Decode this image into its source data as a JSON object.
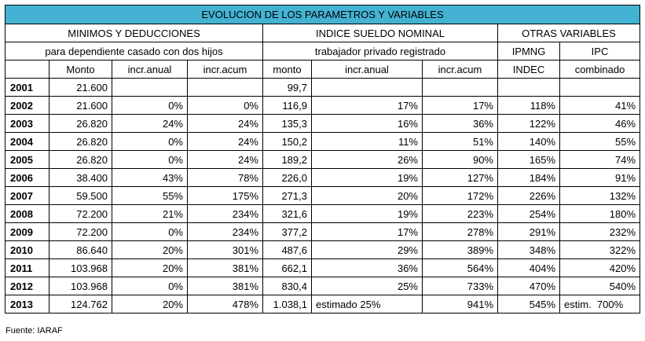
{
  "title": "EVOLUCION DE LOS PARAMETROS Y VARIABLES",
  "groups": {
    "minimos": "MINIMOS Y DEDUCCIONES",
    "indice": "INDICE SUELDO NOMINAL",
    "otras": "OTRAS VARIABLES"
  },
  "subgroups": {
    "minimos": "para dependiente casado con dos hijos",
    "indice": "trabajador privado registrado",
    "ipmng": "IPMNG",
    "ipc": "IPC"
  },
  "columns": [
    "Monto",
    "incr.anual",
    "incr.acum",
    "monto",
    "incr.anual",
    "incr.acum",
    "INDEC",
    "combinado"
  ],
  "rows": [
    {
      "year": "2001",
      "monto": "21.600",
      "ia": "",
      "iac": "",
      "sueldo": "99,7",
      "sia": "",
      "siac": "",
      "ipmng": "",
      "ipc": ""
    },
    {
      "year": "2002",
      "monto": "21.600",
      "ia": "0%",
      "iac": "0%",
      "sueldo": "116,9",
      "sia": "17%",
      "siac": "17%",
      "ipmng": "118%",
      "ipc": "41%"
    },
    {
      "year": "2003",
      "monto": "26.820",
      "ia": "24%",
      "iac": "24%",
      "sueldo": "135,3",
      "sia": "16%",
      "siac": "36%",
      "ipmng": "122%",
      "ipc": "46%"
    },
    {
      "year": "2004",
      "monto": "26.820",
      "ia": "0%",
      "iac": "24%",
      "sueldo": "150,2",
      "sia": "11%",
      "siac": "51%",
      "ipmng": "140%",
      "ipc": "55%"
    },
    {
      "year": "2005",
      "monto": "26.820",
      "ia": "0%",
      "iac": "24%",
      "sueldo": "189,2",
      "sia": "26%",
      "siac": "90%",
      "ipmng": "165%",
      "ipc": "74%"
    },
    {
      "year": "2006",
      "monto": "38.400",
      "ia": "43%",
      "iac": "78%",
      "sueldo": "226,0",
      "sia": "19%",
      "siac": "127%",
      "ipmng": "184%",
      "ipc": "91%"
    },
    {
      "year": "2007",
      "monto": "59.500",
      "ia": "55%",
      "iac": "175%",
      "sueldo": "271,3",
      "sia": "20%",
      "siac": "172%",
      "ipmng": "226%",
      "ipc": "132%"
    },
    {
      "year": "2008",
      "monto": "72.200",
      "ia": "21%",
      "iac": "234%",
      "sueldo": "321,6",
      "sia": "19%",
      "siac": "223%",
      "ipmng": "254%",
      "ipc": "180%"
    },
    {
      "year": "2009",
      "monto": "72.200",
      "ia": "0%",
      "iac": "234%",
      "sueldo": "377,2",
      "sia": "17%",
      "siac": "278%",
      "ipmng": "291%",
      "ipc": "232%"
    },
    {
      "year": "2010",
      "monto": "86.640",
      "ia": "20%",
      "iac": "301%",
      "sueldo": "487,6",
      "sia": "29%",
      "siac": "389%",
      "ipmng": "348%",
      "ipc": "322%"
    },
    {
      "year": "2011",
      "monto": "103.968",
      "ia": "20%",
      "iac": "381%",
      "sueldo": "662,1",
      "sia": "36%",
      "siac": "564%",
      "ipmng": "404%",
      "ipc": "420%"
    },
    {
      "year": "2012",
      "monto": "103.968",
      "ia": "0%",
      "iac": "381%",
      "sueldo": "830,4",
      "sia": "25%",
      "siac": "733%",
      "ipmng": "470%",
      "ipc": "540%"
    },
    {
      "year": "2013",
      "monto": "124.762",
      "ia": "20%",
      "iac": "478%",
      "sueldo": "1.038,1",
      "sia": "estimado 25%",
      "siac": "941%",
      "ipmng": "545%",
      "ipc": "estim.  700%"
    }
  ],
  "source": "Fuente: IARAF"
}
